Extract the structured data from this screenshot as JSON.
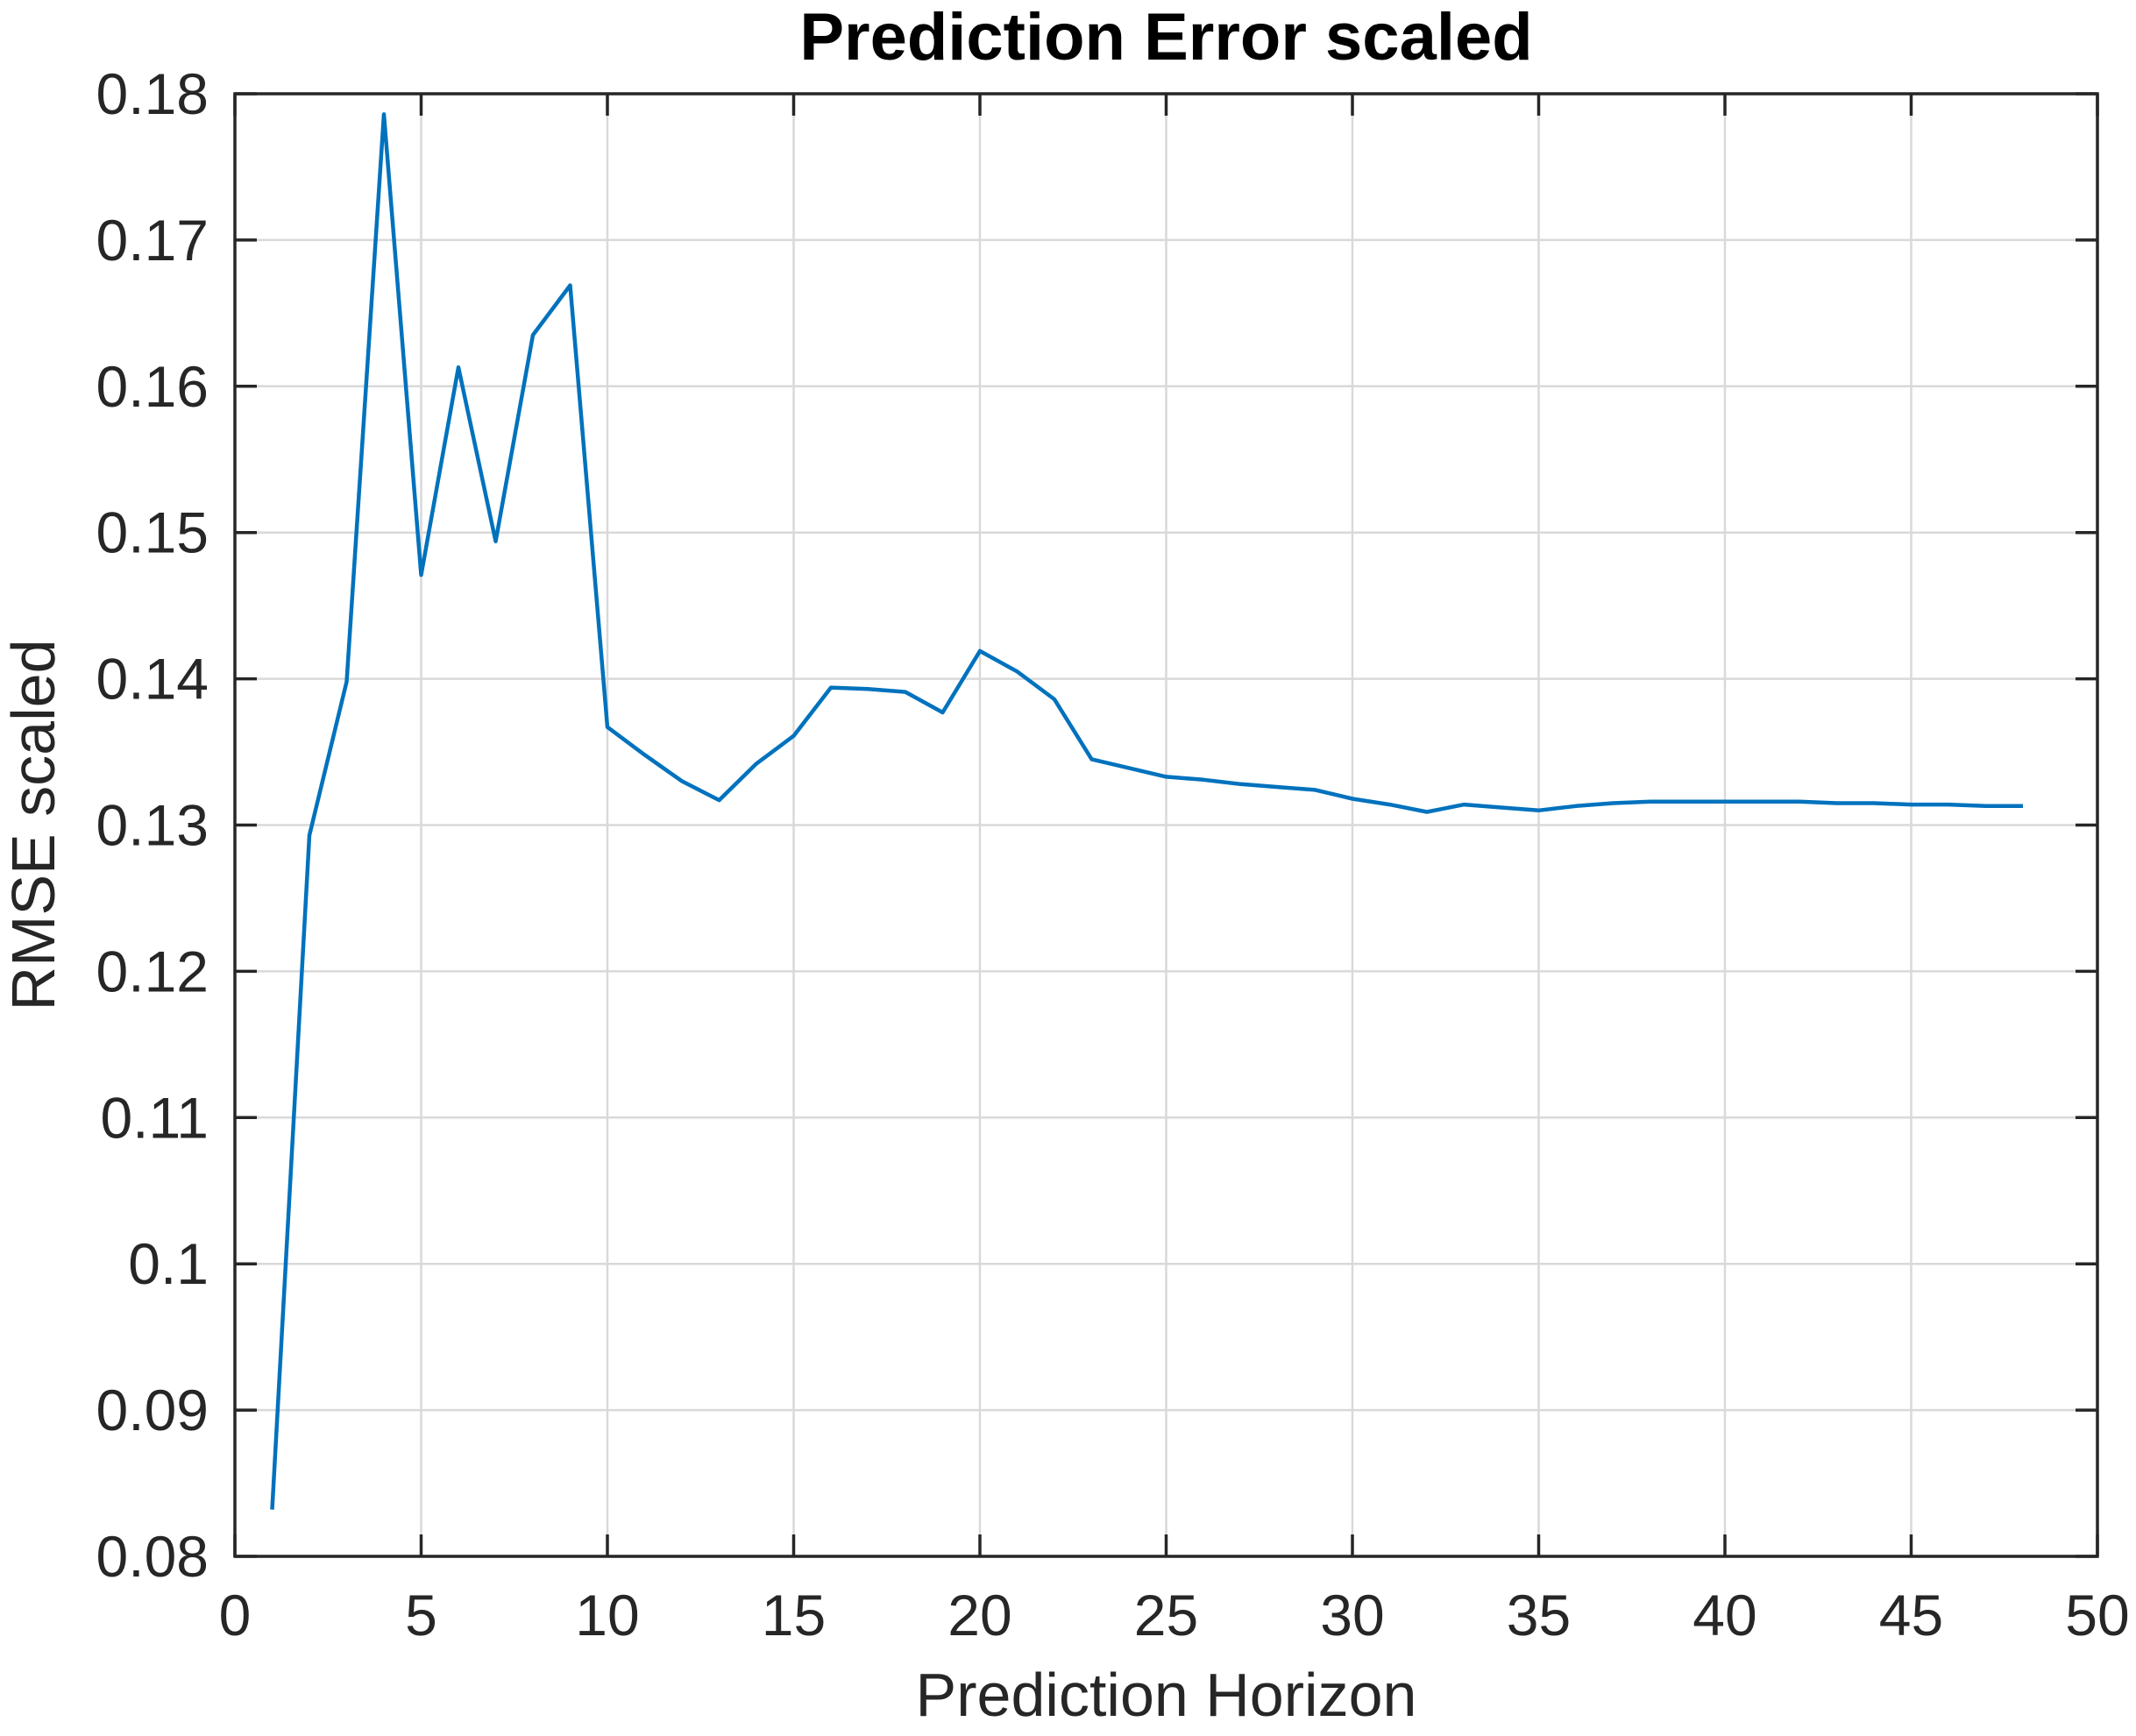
{
  "figure": {
    "background": "#ffffff"
  },
  "style": {
    "line_color": "#0072BD",
    "grid_color": "#d9d9d9",
    "axis_color": "#262626",
    "title_color": "#000000",
    "line_width": 4.5,
    "grid_width": 2.5,
    "axis_width": 3.5,
    "tick_length": 25
  },
  "chart_data": {
    "type": "line",
    "title": "Prediction Error scaled",
    "xlabel": "Prediction Horizon",
    "ylabel": "RMSE scaled",
    "xlim": [
      0,
      50
    ],
    "ylim": [
      0.08,
      0.18
    ],
    "grid": true,
    "legend_position": "none",
    "xticks": [
      0,
      5,
      10,
      15,
      20,
      25,
      30,
      35,
      40,
      45,
      50
    ],
    "xtick_labels": [
      "0",
      "5",
      "10",
      "15",
      "20",
      "25",
      "30",
      "35",
      "40",
      "45",
      "50"
    ],
    "yticks": [
      0.08,
      0.09,
      0.1,
      0.11,
      0.12,
      0.13,
      0.14,
      0.15,
      0.16,
      0.17,
      0.18
    ],
    "ytick_labels": [
      "0.08",
      "0.09",
      "0.1",
      "0.11",
      "0.12",
      "0.13",
      "0.14",
      "0.15",
      "0.16",
      "0.17",
      "0.18"
    ],
    "series": [
      {
        "name": "RMSE scaled",
        "color": "#0072BD",
        "x": [
          1,
          2,
          3,
          4,
          5,
          6,
          7,
          8,
          9,
          10,
          11,
          12,
          13,
          14,
          15,
          16,
          17,
          18,
          19,
          20,
          21,
          22,
          23,
          24,
          25,
          26,
          27,
          28,
          29,
          30,
          31,
          32,
          33,
          34,
          35,
          36,
          37,
          38,
          39,
          40,
          41,
          42,
          43,
          44,
          45,
          46,
          47,
          48
        ],
        "y": [
          0.0832,
          0.1293,
          0.1398,
          0.1786,
          0.1471,
          0.1613,
          0.1494,
          0.1635,
          0.1669,
          0.1367,
          0.1348,
          0.133,
          0.1317,
          0.1342,
          0.1361,
          0.1394,
          0.1393,
          0.1391,
          0.1377,
          0.1419,
          0.1405,
          0.1386,
          0.1345,
          0.1339,
          0.1333,
          0.1331,
          0.1328,
          0.1326,
          0.1324,
          0.1318,
          0.1314,
          0.1309,
          0.1314,
          0.1312,
          0.131,
          0.1313,
          0.1315,
          0.1316,
          0.1316,
          0.1316,
          0.1316,
          0.1316,
          0.1315,
          0.1315,
          0.1314,
          0.1314,
          0.1313,
          0.1313
        ]
      }
    ]
  }
}
